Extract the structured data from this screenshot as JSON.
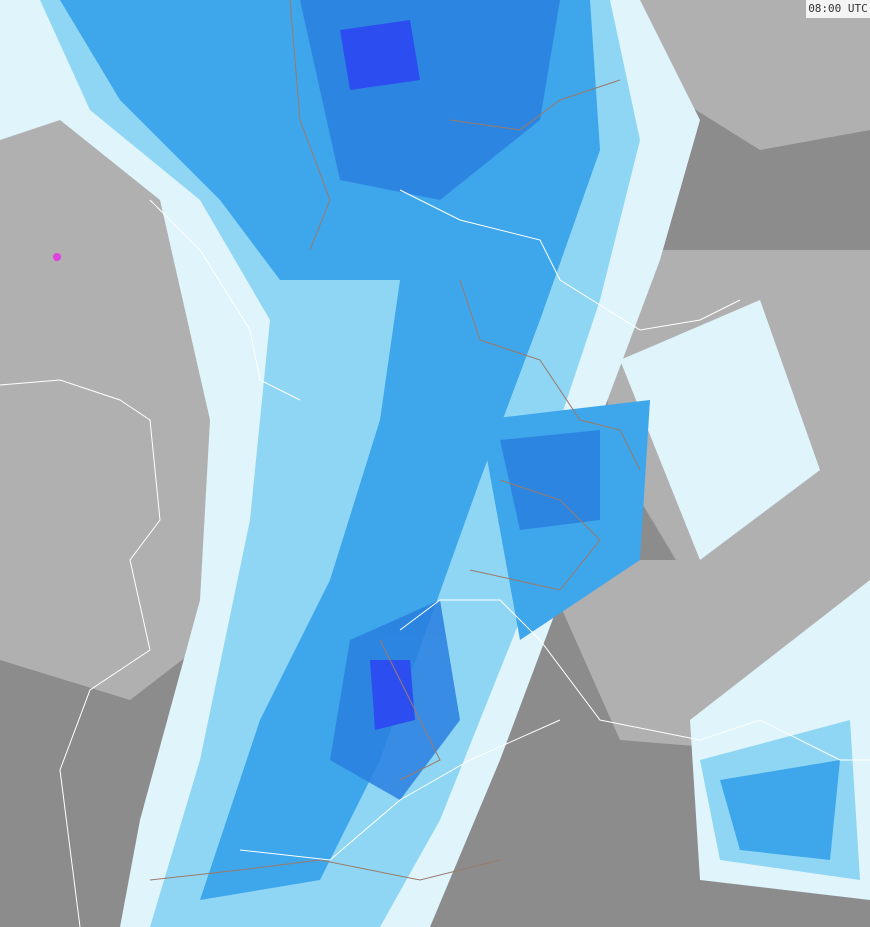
{
  "timestamp": "08:00 UTC",
  "colors": {
    "background_gray": "#8c8c8c",
    "light_gray": "#b4b4b4",
    "pale_cyan": "#dff4fb",
    "light_blue": "#8fd6f5",
    "mid_blue": "#3ea6ea",
    "deep_blue": "#2a7fe0",
    "intense_blue": "#2c4ef0",
    "border_national": "#ffffff",
    "border_state": "#9a7a6a"
  }
}
